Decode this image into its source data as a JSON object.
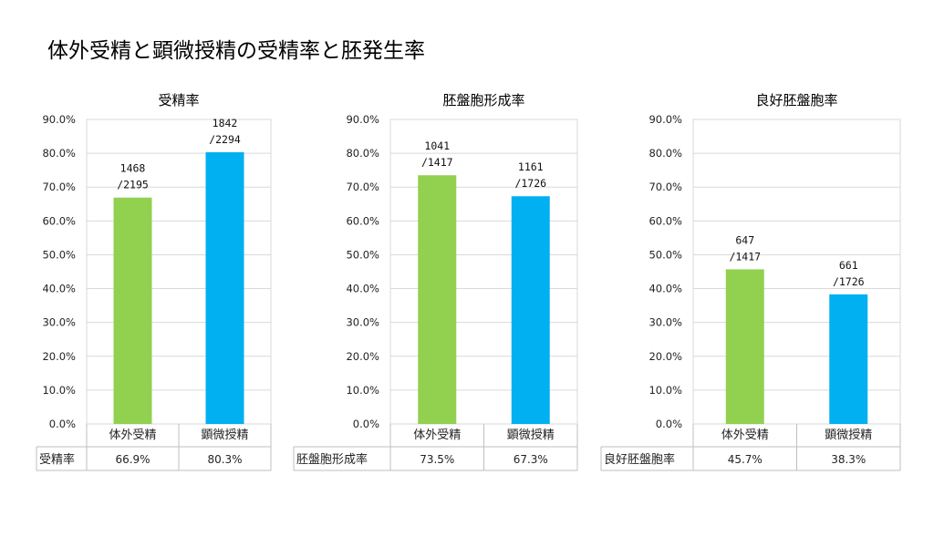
{
  "title": "体外受精と顕微授精の受精率と胚発生率",
  "colors": {
    "ivf": "#92d050",
    "icsi": "#00b0f0"
  },
  "chart_data": [
    {
      "type": "bar",
      "title": "受精率",
      "categories": [
        "体外受精",
        "顕微授精"
      ],
      "values": [
        66.9,
        80.3
      ],
      "ylim": [
        0,
        90
      ],
      "yticks": [
        "0.0%",
        "10.0%",
        "20.0%",
        "30.0%",
        "40.0%",
        "50.0%",
        "60.0%",
        "70.0%",
        "80.0%",
        "90.0%"
      ],
      "data_labels": [
        {
          "num": "1468",
          "den": "/2195"
        },
        {
          "num": "1842",
          "den": "/2294"
        }
      ],
      "table_row_label": "受精率",
      "table_values": [
        "66.9%",
        "80.3%"
      ]
    },
    {
      "type": "bar",
      "title": "胚盤胞形成率",
      "categories": [
        "体外受精",
        "顕微授精"
      ],
      "values": [
        73.5,
        67.3
      ],
      "ylim": [
        0,
        90
      ],
      "yticks": [
        "0.0%",
        "10.0%",
        "20.0%",
        "30.0%",
        "40.0%",
        "50.0%",
        "60.0%",
        "70.0%",
        "80.0%",
        "90.0%"
      ],
      "data_labels": [
        {
          "num": "1041",
          "den": "/1417"
        },
        {
          "num": "1161",
          "den": "/1726"
        }
      ],
      "table_row_label": "胚盤胞形成率",
      "table_values": [
        "73.5%",
        "67.3%"
      ]
    },
    {
      "type": "bar",
      "title": "良好胚盤胞率",
      "categories": [
        "体外受精",
        "顕微授精"
      ],
      "values": [
        45.7,
        38.3
      ],
      "ylim": [
        0,
        90
      ],
      "yticks": [
        "0.0%",
        "10.0%",
        "20.0%",
        "30.0%",
        "40.0%",
        "50.0%",
        "60.0%",
        "70.0%",
        "80.0%",
        "90.0%"
      ],
      "data_labels": [
        {
          "num": "647",
          "den": "/1417"
        },
        {
          "num": "661",
          "den": "/1726"
        }
      ],
      "table_row_label": "良好胚盤胞率",
      "table_values": [
        "45.7%",
        "38.3%"
      ]
    }
  ]
}
